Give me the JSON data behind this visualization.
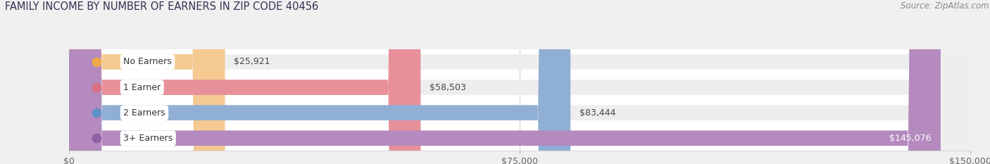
{
  "title": "FAMILY INCOME BY NUMBER OF EARNERS IN ZIP CODE 40456",
  "source": "Source: ZipAtlas.com",
  "categories": [
    "No Earners",
    "1 Earner",
    "2 Earners",
    "3+ Earners"
  ],
  "values": [
    25921,
    58503,
    83444,
    145076
  ],
  "bar_colors": [
    "#f5c992",
    "#e8909a",
    "#90afd4",
    "#b48abf"
  ],
  "label_dot_colors": [
    "#f0a84a",
    "#d97080",
    "#6090c8",
    "#9060a8"
  ],
  "label_colors": [
    "#333333",
    "#333333",
    "#333333",
    "#ffffff"
  ],
  "value_labels": [
    "$25,921",
    "$58,503",
    "$83,444",
    "$145,076"
  ],
  "xlim": [
    0,
    150000
  ],
  "xticks": [
    0,
    75000,
    150000
  ],
  "xtick_labels": [
    "$0",
    "$75,000",
    "$150,000"
  ],
  "page_background_color": "#f0f0f0",
  "chart_background_color": "#ffffff",
  "bar_background_color": "#eeeeee",
  "title_fontsize": 10.5,
  "source_fontsize": 8.5,
  "label_fontsize": 9,
  "value_fontsize": 9,
  "tick_fontsize": 9
}
